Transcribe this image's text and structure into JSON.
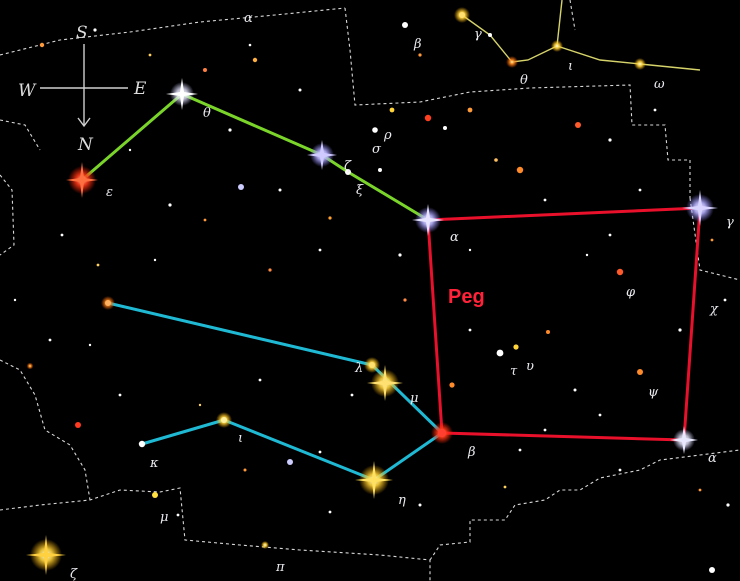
{
  "chart_title": "",
  "constellation_abbrev": "Peg",
  "compass": {
    "north": "N",
    "south": "S",
    "east": "E",
    "west": "W"
  },
  "colors": {
    "background": "#000000",
    "asterism_square": "#e8102a",
    "front_leg": "#7ad42a",
    "hind_legs": "#1fb9d4",
    "boundary": "#d8d8d8",
    "neighbor_lines": "#d6d36a"
  },
  "star_labels": [
    {
      "id": "theta",
      "text": "θ"
    },
    {
      "id": "zeta",
      "text": "ζ"
    },
    {
      "id": "xi",
      "text": "ξ"
    },
    {
      "id": "rho",
      "text": "ρ"
    },
    {
      "id": "sigma",
      "text": "σ"
    },
    {
      "id": "epsilon",
      "text": "ε"
    },
    {
      "id": "alpha",
      "text": "α"
    },
    {
      "id": "gamma",
      "text": "γ"
    },
    {
      "id": "chi",
      "text": "χ"
    },
    {
      "id": "phi",
      "text": "φ"
    },
    {
      "id": "psi",
      "text": "ψ"
    },
    {
      "id": "tau",
      "text": "τ"
    },
    {
      "id": "upsilon",
      "text": "υ"
    },
    {
      "id": "mu",
      "text": "μ"
    },
    {
      "id": "beta",
      "text": "β"
    },
    {
      "id": "lambda",
      "text": "λ"
    },
    {
      "id": "iota",
      "text": "ι"
    },
    {
      "id": "kappa",
      "text": "κ"
    },
    {
      "id": "eta",
      "text": "η"
    },
    {
      "id": "mu_lower",
      "text": "μ"
    },
    {
      "id": "pi",
      "text": "π"
    },
    {
      "id": "zeta_lower",
      "text": "ζ"
    },
    {
      "id": "alpha_right",
      "text": "α"
    },
    {
      "id": "alpha_top",
      "text": "α"
    },
    {
      "id": "beta_top",
      "text": "β"
    },
    {
      "id": "gamma_top",
      "text": "γ"
    },
    {
      "id": "theta_top",
      "text": "θ"
    },
    {
      "id": "iota_top",
      "text": "ι"
    },
    {
      "id": "omega_top",
      "text": "ω"
    }
  ]
}
